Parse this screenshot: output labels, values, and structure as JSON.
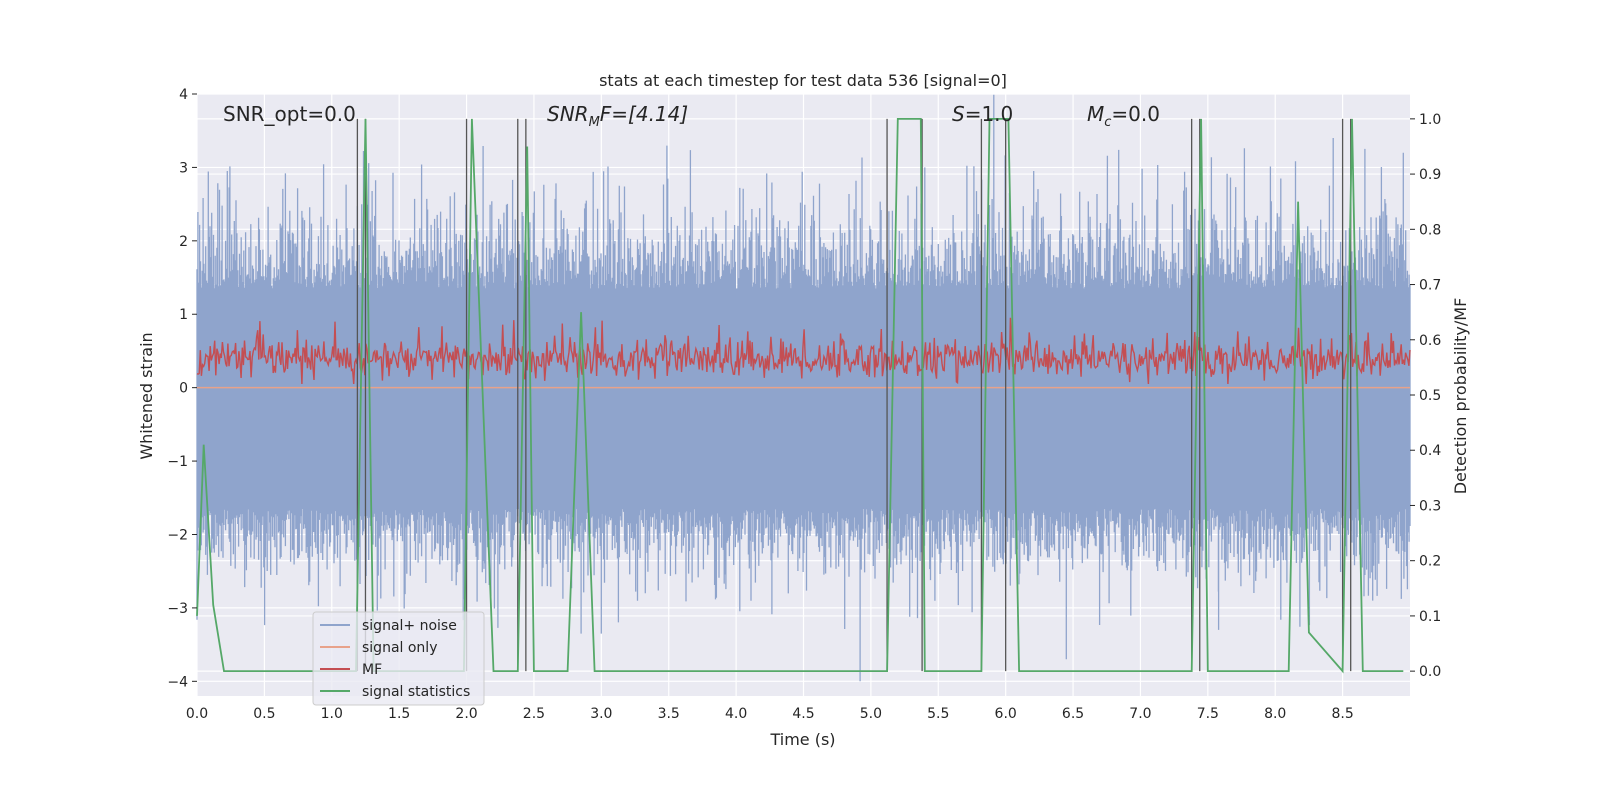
{
  "chart_data": {
    "type": "line",
    "title": "stats at each timestep for test data 536 [signal=0]",
    "xlabel": "Time (s)",
    "ylabel": "Whitened strain",
    "y2label": "Detection probability/MF",
    "xlim": [
      0,
      9.0
    ],
    "ylim": [
      -4.2,
      4.0
    ],
    "y2lim": [
      -0.045,
      1.045
    ],
    "x_ticks": [
      "0.0",
      "0.5",
      "1.0",
      "1.5",
      "2.0",
      "2.5",
      "3.0",
      "3.5",
      "4.0",
      "4.5",
      "5.0",
      "5.5",
      "6.0",
      "6.5",
      "7.0",
      "7.5",
      "8.0",
      "8.5"
    ],
    "y_ticks": [
      "4",
      "3",
      "2",
      "1",
      "0",
      "−1",
      "−2",
      "−3",
      "−4"
    ],
    "y2_ticks": [
      "1.0",
      "0.9",
      "0.8",
      "0.7",
      "0.6",
      "0.5",
      "0.4",
      "0.3",
      "0.2",
      "0.1",
      "0.0"
    ],
    "grid": true,
    "legend_position": "lower-left",
    "annotations": {
      "snr_opt": "SNR_opt=0.0",
      "snr_mf_main": "SNR",
      "snr_mf_sub": "M",
      "snr_mf_tail": "F=[4.14]",
      "s_main": "S",
      "s_tail": "=1.0",
      "mc_main": "M",
      "mc_sub": "c",
      "mc_tail": "=0.0"
    },
    "series": [
      {
        "name": "signal+ noise",
        "color": "#8fa4cc",
        "description_of_values": "noise band approx −1.7 to 1.5 with spikes to ±3.5"
      },
      {
        "name": "signal only",
        "color": "#e8a28a",
        "values_constant": 0.0
      },
      {
        "name": "MF",
        "color": "#c44e52",
        "y2_range": [
          0.53,
          0.6
        ]
      },
      {
        "name": "signal statistics",
        "color": "#55a868",
        "x": [
          0.0,
          0.05,
          0.12,
          0.2,
          1.18,
          1.25,
          1.31,
          1.98,
          2.04,
          2.2,
          2.38,
          2.45,
          2.5,
          2.55,
          2.75,
          2.85,
          2.95,
          5.12,
          5.2,
          5.37,
          5.4,
          5.45,
          5.82,
          5.88,
          6.02,
          6.1,
          7.38,
          7.45,
          7.5,
          8.05,
          8.1,
          8.17,
          8.25,
          8.5,
          8.57,
          8.65,
          8.95
        ],
        "values": [
          0.1,
          0.41,
          0.12,
          0.0,
          0.0,
          1.0,
          0.0,
          0.0,
          1.0,
          0.0,
          0.0,
          0.95,
          0.0,
          0.0,
          0.0,
          0.65,
          0.0,
          0.0,
          1.0,
          1.0,
          0.0,
          0.0,
          0.0,
          1.0,
          1.0,
          0.0,
          0.0,
          1.0,
          0.0,
          0.0,
          0.0,
          0.85,
          0.07,
          0.0,
          1.0,
          0.0,
          0.0
        ]
      }
    ],
    "vlines_x": [
      1.19,
      1.25,
      2.0,
      2.38,
      2.44,
      5.12,
      5.38,
      5.82,
      6.0,
      7.38,
      7.44,
      8.5,
      8.56
    ],
    "vlines_y2_top": 1.0
  }
}
